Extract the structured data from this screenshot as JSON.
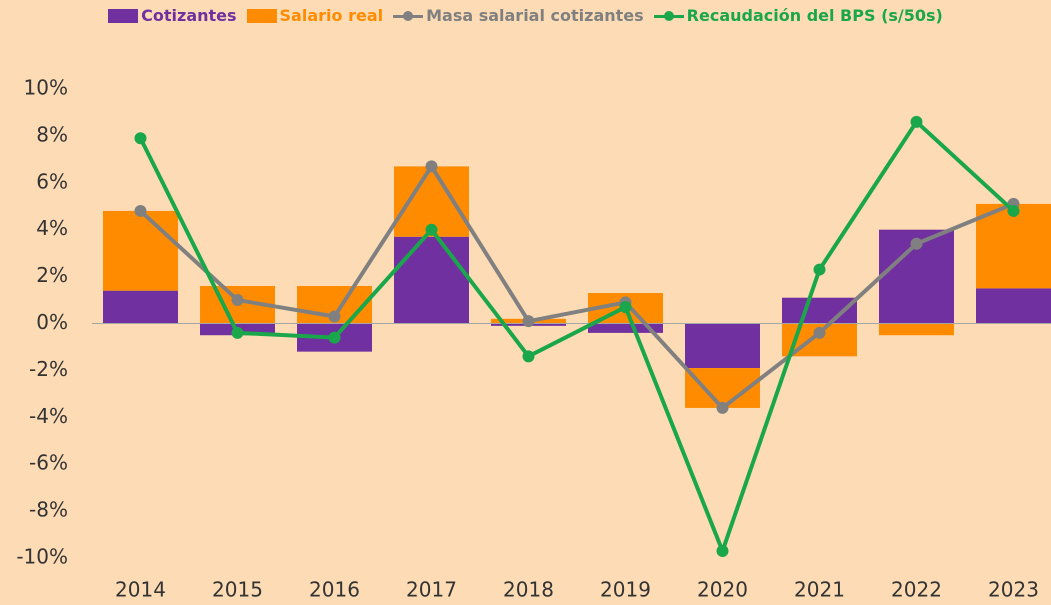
{
  "chart_data": {
    "type": "bar",
    "categories": [
      "2014",
      "2015",
      "2016",
      "2017",
      "2018",
      "2019",
      "2020",
      "2021",
      "2022",
      "2023"
    ],
    "series": [
      {
        "name": "Cotizantes",
        "type": "bar",
        "color": "#7030a0",
        "values": [
          1.4,
          -0.5,
          -1.2,
          3.7,
          -0.1,
          -0.4,
          -1.9,
          1.1,
          4.0,
          1.5
        ]
      },
      {
        "name": "Salario real",
        "type": "bar",
        "color": "#ff8c00",
        "values": [
          3.4,
          1.6,
          1.6,
          3.0,
          0.2,
          1.3,
          -1.7,
          -1.4,
          -0.5,
          3.6
        ]
      },
      {
        "name": "Masa salarial cotizantes",
        "type": "line",
        "color": "#808080",
        "values": [
          4.8,
          1.0,
          0.3,
          6.7,
          0.1,
          0.9,
          -3.6,
          -0.4,
          3.4,
          5.1
        ]
      },
      {
        "name": "Recaudación del BPS (s/50s)",
        "type": "line",
        "color": "#1aa64a",
        "values": [
          7.9,
          -0.4,
          -0.6,
          4.0,
          -1.4,
          0.7,
          -9.7,
          2.3,
          8.6,
          4.8
        ]
      }
    ],
    "ylim": [
      -10,
      10
    ],
    "yticks": [
      {
        "value": -10,
        "label": "-10%"
      },
      {
        "value": -8,
        "label": "-8%"
      },
      {
        "value": -6,
        "label": "-6%"
      },
      {
        "value": -4,
        "label": "-4%"
      },
      {
        "value": -2,
        "label": "-2%"
      },
      {
        "value": 0,
        "label": "0%"
      },
      {
        "value": 2,
        "label": "2%"
      },
      {
        "value": 4,
        "label": "4%"
      },
      {
        "value": 6,
        "label": "6%"
      },
      {
        "value": 8,
        "label": "8%"
      },
      {
        "value": 10,
        "label": "10%"
      }
    ]
  }
}
